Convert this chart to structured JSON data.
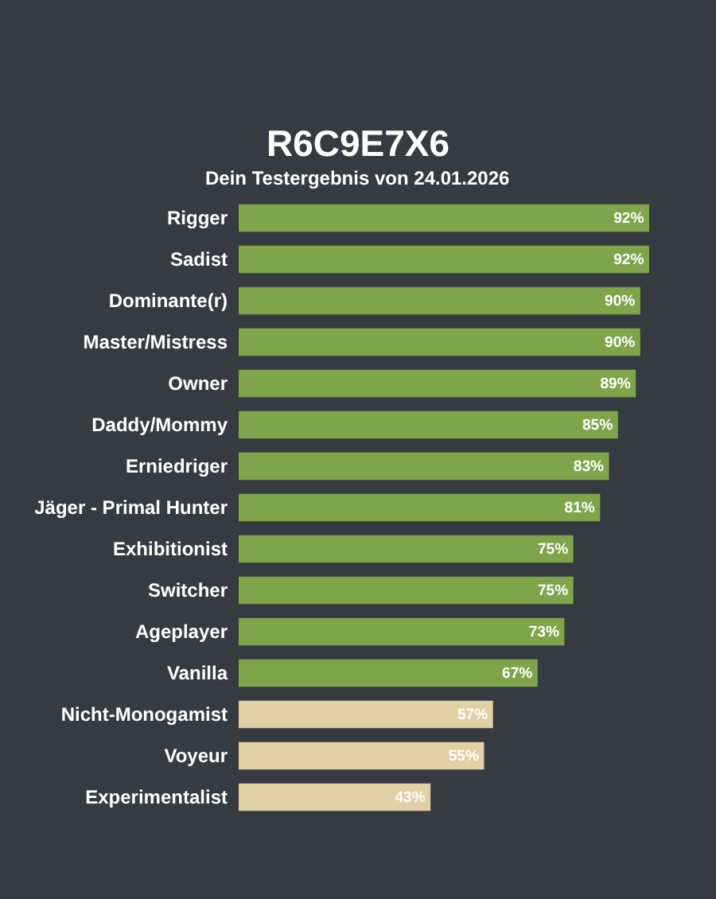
{
  "chart_data": {
    "type": "bar",
    "orientation": "horizontal",
    "title": "R6C9E7X6",
    "subtitle": "Dein Testergebnis von 24.01.2026",
    "categories": [
      "Rigger",
      "Sadist",
      "Dominante(r)",
      "Master/Mistress",
      "Owner",
      "Daddy/Mommy",
      "Erniedriger",
      "Jäger - Primal Hunter",
      "Exhibitionist",
      "Switcher",
      "Ageplayer",
      "Vanilla",
      "Nicht-Monogamist",
      "Voyeur",
      "Experimentalist"
    ],
    "values": [
      92,
      92,
      90,
      90,
      89,
      85,
      83,
      81,
      75,
      75,
      73,
      67,
      57,
      55,
      43
    ],
    "value_labels": [
      "92%",
      "92%",
      "90%",
      "90%",
      "89%",
      "85%",
      "83%",
      "81%",
      "75%",
      "75%",
      "73%",
      "67%",
      "57%",
      "55%",
      "43%"
    ],
    "colors": [
      "#7fa54a",
      "#7fa54a",
      "#7fa54a",
      "#7fa54a",
      "#7fa54a",
      "#7fa54a",
      "#7fa54a",
      "#7fa54a",
      "#7fa54a",
      "#7fa54a",
      "#7fa54a",
      "#7fa54a",
      "#e0d0a4",
      "#e0d0a4",
      "#e0d0a4"
    ]
  }
}
